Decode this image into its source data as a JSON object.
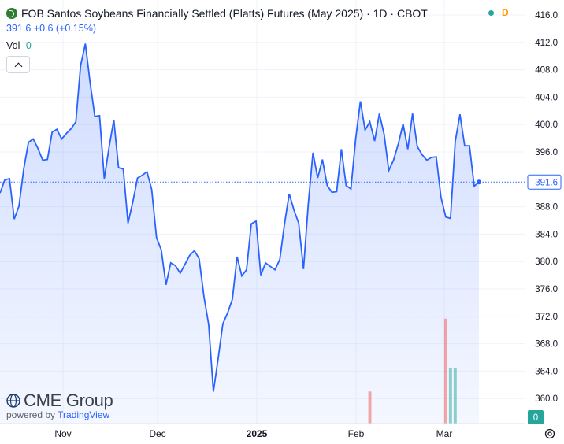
{
  "header": {
    "title": "FOB Santos Soybeans Financially Settled (Platts) Futures (May 2025) · 1D · CBOT",
    "delay_badge": "D",
    "status_color": "#26a69a",
    "delay_color": "#ff9800",
    "symbol_icon": "cme-logo-icon"
  },
  "legend": {
    "last": "391.6",
    "change": "+0.6 (+0.15%)",
    "vol_label": "Vol",
    "vol_value": "0"
  },
  "branding": {
    "logo_text": "CME Group",
    "powered_prefix": "powered by ",
    "powered_brand": "TradingView"
  },
  "chart_data": {
    "type": "area",
    "x_ticks": [
      "Nov",
      "Dec",
      "2025",
      "Feb",
      "Mar"
    ],
    "y_ticks": [
      "416.0",
      "412.0",
      "408.0",
      "404.0",
      "400.0",
      "396.0",
      "392.0",
      "388.0",
      "384.0",
      "380.0",
      "376.0",
      "372.0",
      "368.0",
      "364.0",
      "360.0"
    ],
    "ylim": [
      358.5,
      416.0
    ],
    "last_price_label": "391.6",
    "volume_axis_label": "0",
    "line_color": "#2962ff",
    "volume_up_color": "#26a69a",
    "volume_down_color": "#ef5350",
    "price": [
      390.0,
      391.9,
      392.1,
      386.2,
      388.1,
      393.5,
      397.4,
      397.9,
      396.5,
      394.8,
      394.9,
      398.9,
      399.3,
      397.9,
      398.7,
      399.4,
      400.4,
      408.6,
      411.8,
      406.1,
      401.2,
      401.3,
      392.1,
      396.7,
      400.7,
      393.7,
      393.5,
      385.6,
      388.7,
      392.2,
      392.6,
      393.1,
      390.5,
      383.5,
      381.7,
      376.6,
      379.8,
      379.4,
      378.3,
      379.6,
      380.9,
      381.6,
      380.4,
      374.9,
      370.8,
      361.0,
      365.8,
      370.9,
      372.5,
      374.5,
      380.7,
      377.9,
      378.8,
      385.5,
      385.9,
      378.0,
      379.8,
      379.3,
      378.8,
      380.3,
      385.5,
      389.9,
      387.5,
      385.6,
      378.9,
      388.3,
      395.9,
      392.2,
      394.9,
      391.1,
      390.1,
      390.2,
      396.4,
      391.1,
      390.6,
      397.9,
      403.4,
      399.2,
      400.4,
      397.6,
      401.6,
      398.6,
      393.3,
      394.8,
      397.2,
      400.1,
      396.4,
      401.6,
      396.8,
      395.6,
      394.8,
      395.2,
      395.3,
      389.4,
      386.5,
      386.3,
      397.5,
      401.5,
      396.9,
      396.9,
      391.0,
      391.6
    ],
    "volume": [
      {
        "index": 78,
        "value": 5.5,
        "direction": "down"
      },
      {
        "index": 94,
        "value": 18,
        "direction": "down"
      },
      {
        "index": 95,
        "value": 9.5,
        "direction": "up"
      },
      {
        "index": 96,
        "value": 9.5,
        "direction": "up"
      }
    ]
  }
}
